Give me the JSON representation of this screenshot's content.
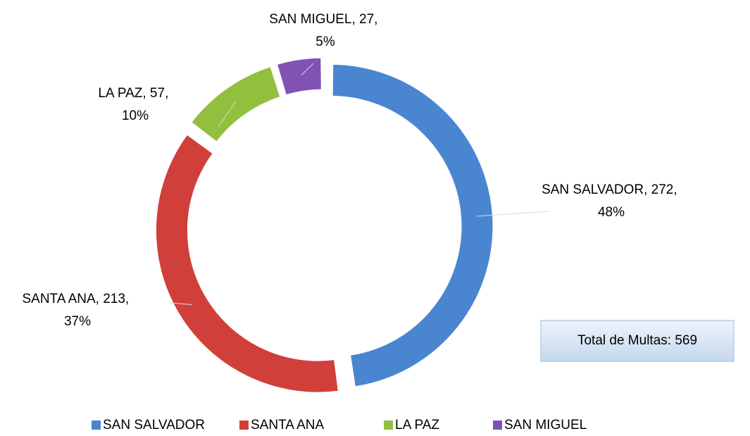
{
  "chart_data": {
    "type": "donut",
    "categories": [
      "SAN SALVADOR",
      "SANTA ANA",
      "LA PAZ",
      "SAN MIGUEL"
    ],
    "values": [
      272,
      213,
      57,
      27
    ],
    "value_labels": [
      "SAN SALVADOR, 272, 48%",
      "SANTA ANA, 213, 37%",
      "LA PAZ, 57, 10%",
      "SAN MIGUEL, 27, 5%"
    ],
    "colors": [
      "#4a86d0",
      "#d13f3a",
      "#92c03e",
      "#7f52b3"
    ],
    "annotation": "Total de Multas: 569",
    "legend": "bottom"
  }
}
